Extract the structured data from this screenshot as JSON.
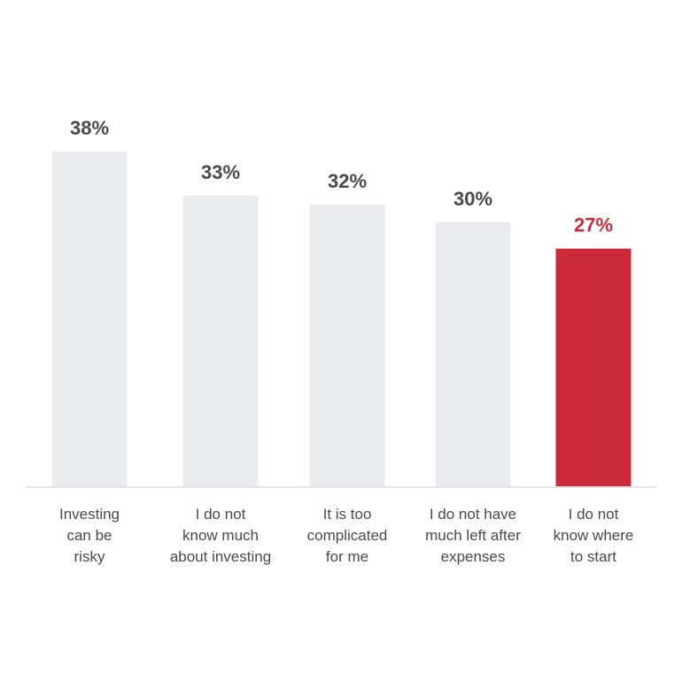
{
  "chart_data": {
    "type": "bar",
    "categories": [
      [
        "Investing",
        "can be",
        "risky"
      ],
      [
        "I do not",
        "know much",
        "about investing"
      ],
      [
        "It is too",
        "complicated",
        "for me"
      ],
      [
        "I do not have",
        "much left after",
        "expenses"
      ],
      [
        "I do not",
        "know where",
        "to start"
      ]
    ],
    "values": [
      38,
      33,
      32,
      30,
      27
    ],
    "value_labels": [
      "38%",
      "33%",
      "32%",
      "30%",
      "27%"
    ],
    "highlight_index": 4,
    "title": "",
    "xlabel": "",
    "ylabel": "",
    "ylim": [
      0,
      38
    ],
    "grid": false,
    "colors": {
      "bar": "#e9edf0",
      "highlight_bar": "#cc2b3b",
      "value_text": "#4a4a4a",
      "highlight_value_text": "#cc2b3b",
      "axis": "#e3e5e8",
      "category_text": "#4a4a4a"
    }
  }
}
